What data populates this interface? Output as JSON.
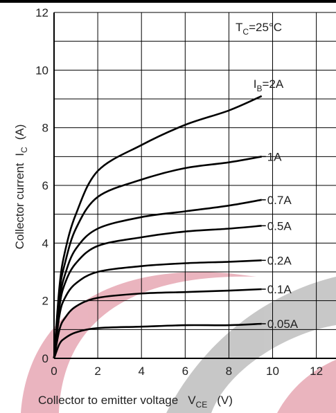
{
  "chart_data": {
    "type": "line",
    "annotation": {
      "symbol": "T",
      "subscript": "C",
      "text": "=25°C"
    },
    "curve_label": {
      "symbol": "I",
      "subscript": "B",
      "equals": "="
    },
    "y_label": {
      "text": "Collector current",
      "symbol": "I",
      "subscript": "C",
      "unit": "(A)"
    },
    "x_label": {
      "text": "Collector to emitter voltage",
      "symbol": "V",
      "subscript": "CE",
      "unit": "(V)"
    },
    "x": [
      0,
      0.25,
      0.5,
      1,
      2,
      4,
      6,
      8,
      9.5
    ],
    "series": [
      {
        "name": "2A",
        "color": "#000000",
        "values": [
          0,
          2.5,
          3.7,
          5.0,
          6.5,
          7.4,
          8.1,
          8.6,
          9.1
        ]
      },
      {
        "name": "1A",
        "color": "#000000",
        "values": [
          0,
          2.3,
          3.3,
          4.5,
          5.6,
          6.2,
          6.6,
          6.8,
          7.0
        ]
      },
      {
        "name": "0.7A",
        "color": "#000000",
        "values": [
          0,
          2.0,
          2.9,
          3.8,
          4.5,
          4.9,
          5.1,
          5.3,
          5.5
        ]
      },
      {
        "name": "0.5A",
        "color": "#000000",
        "values": [
          0,
          1.8,
          2.6,
          3.3,
          3.9,
          4.2,
          4.4,
          4.5,
          4.6
        ]
      },
      {
        "name": "0.2A",
        "color": "#000000",
        "values": [
          0,
          1.5,
          2.1,
          2.6,
          3.0,
          3.2,
          3.3,
          3.35,
          3.4
        ]
      },
      {
        "name": "0.1A",
        "color": "#000000",
        "values": [
          0,
          1.0,
          1.4,
          1.8,
          2.1,
          2.25,
          2.3,
          2.35,
          2.4
        ]
      },
      {
        "name": "0.05A",
        "color": "#000000",
        "values": [
          0,
          0.5,
          0.7,
          0.9,
          1.05,
          1.1,
          1.15,
          1.15,
          1.2
        ]
      }
    ],
    "xlim": [
      0,
      12.9
    ],
    "ylim": [
      0,
      12
    ],
    "xticks": [
      0,
      2,
      4,
      6,
      8,
      10,
      12
    ],
    "yticks": [
      0,
      2,
      4,
      6,
      8,
      10,
      12
    ],
    "yminor": [
      1,
      3,
      5,
      7,
      9,
      11
    ],
    "grid": true
  }
}
